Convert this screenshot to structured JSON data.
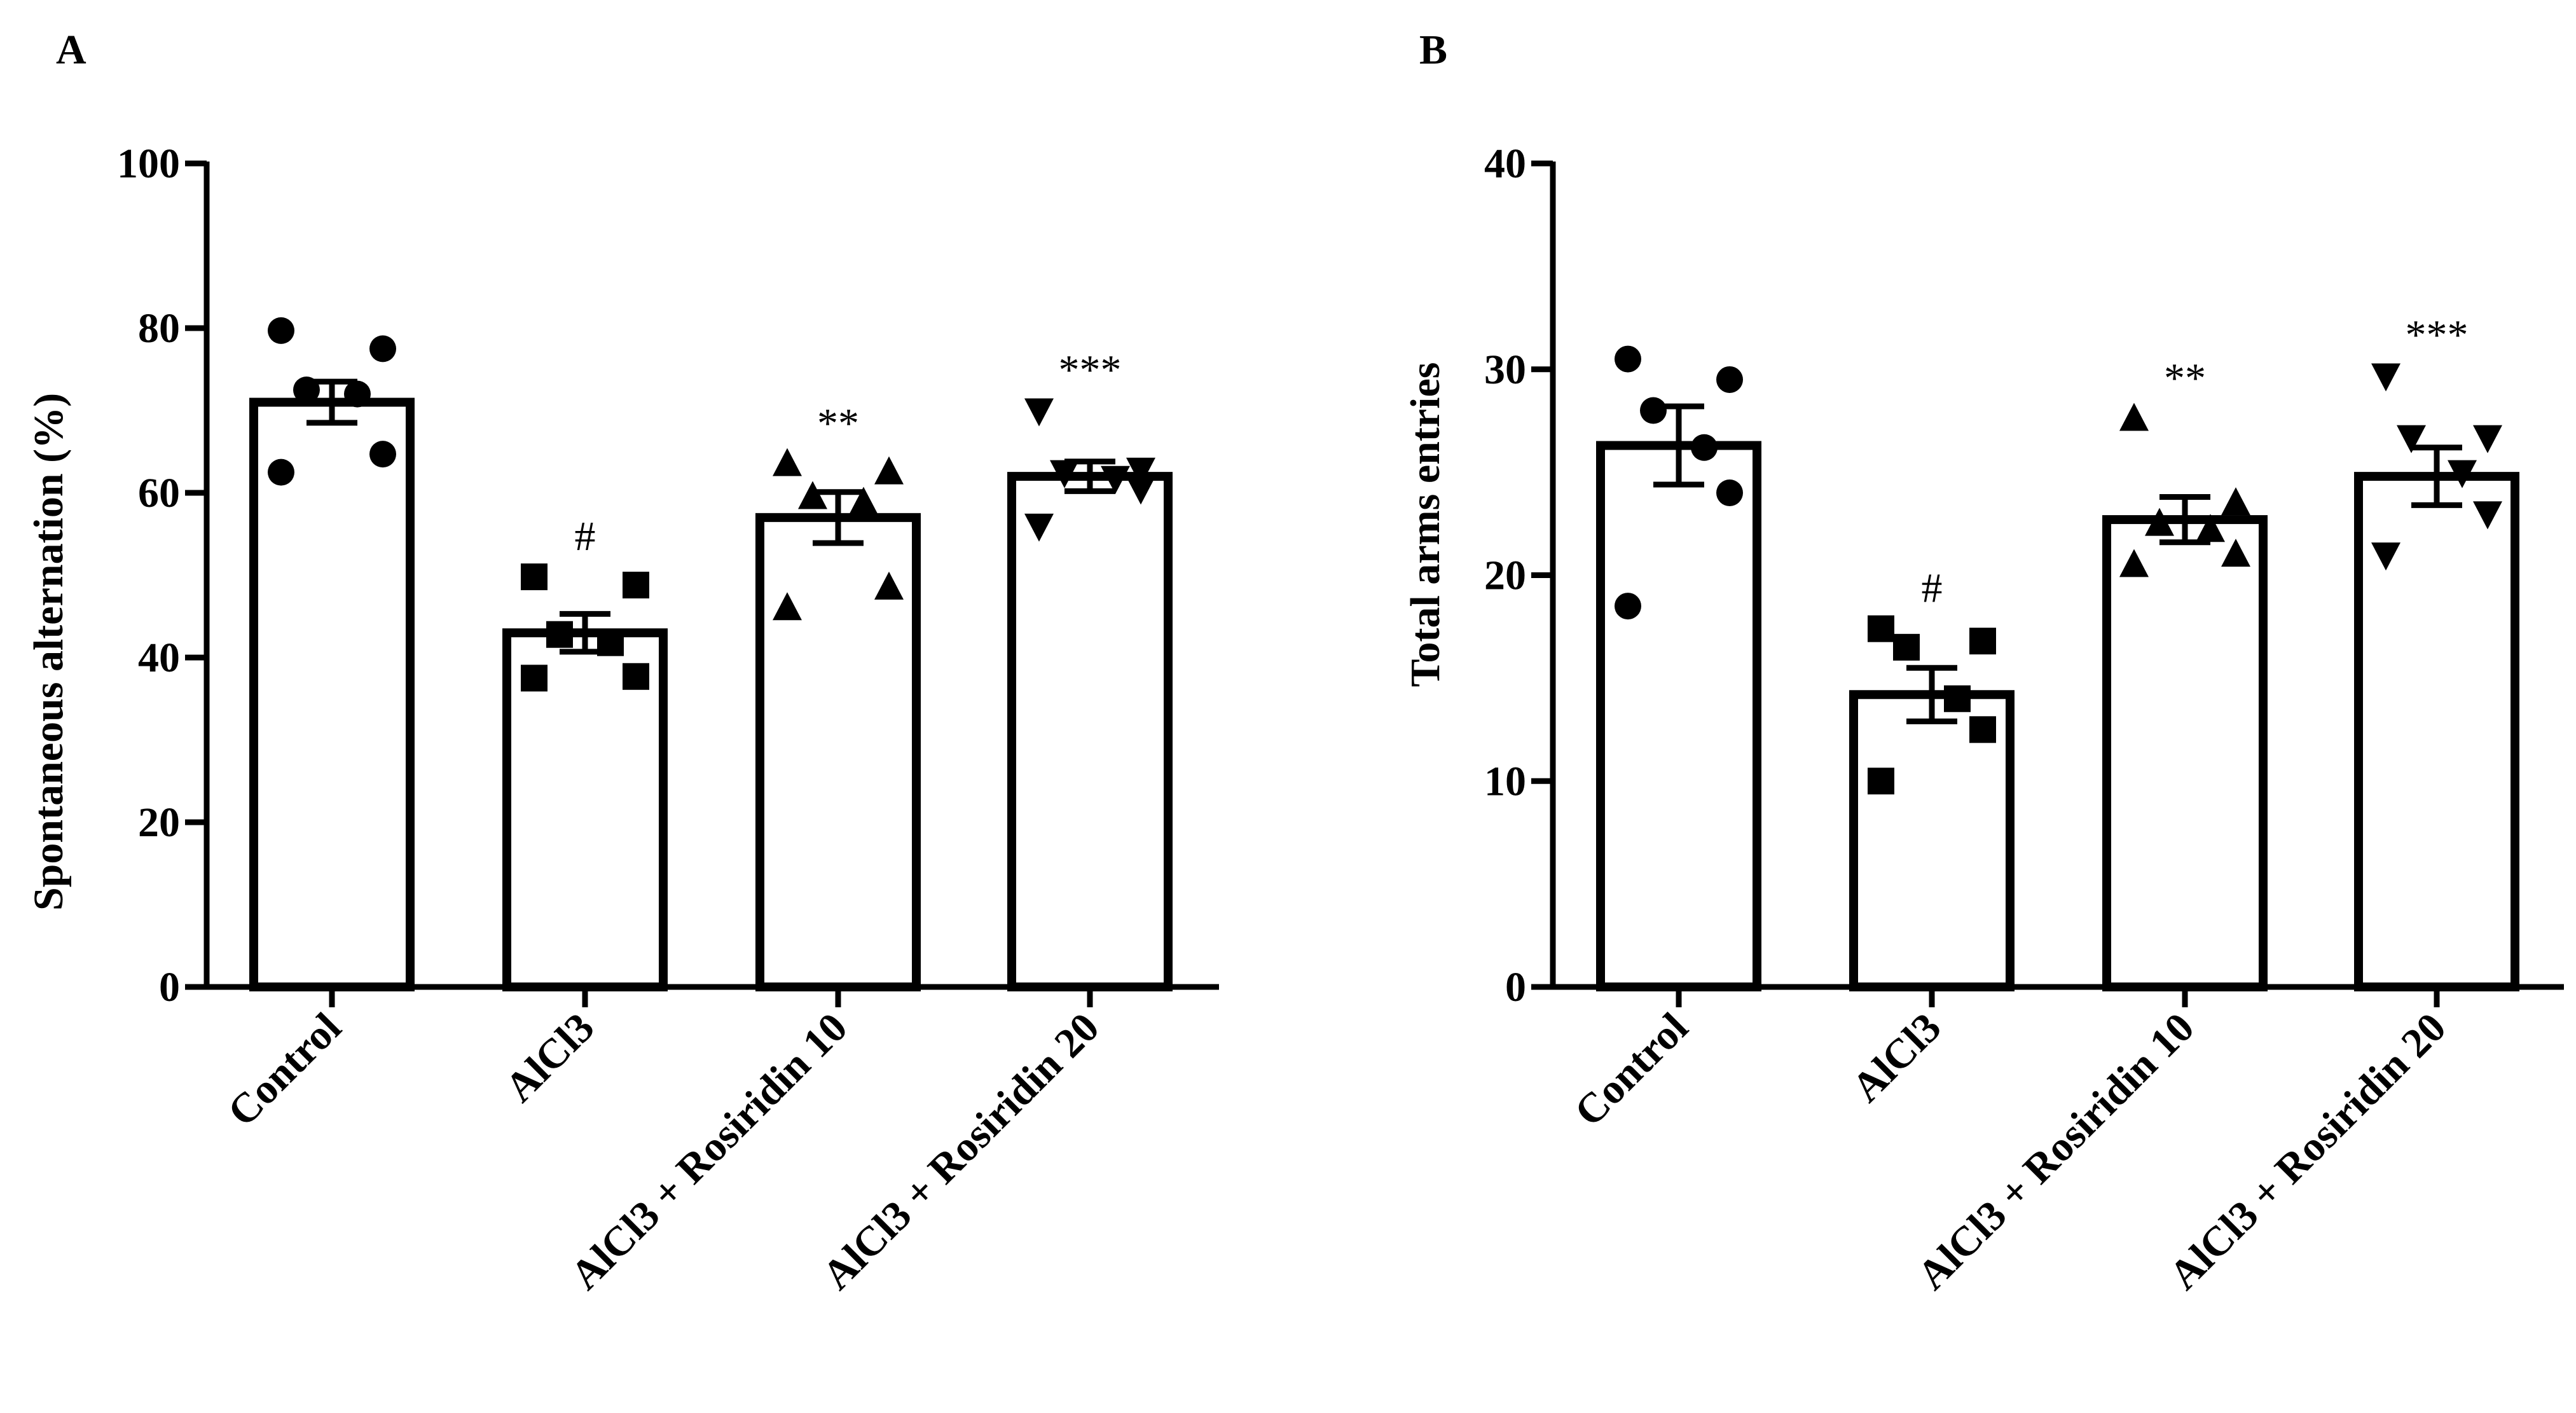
{
  "chart_data": [
    {
      "panel": "A",
      "type": "bar",
      "title": "",
      "xlabel": "",
      "ylabel": "Spontaneous alternation (%)",
      "ylim": [
        0,
        100
      ],
      "yticks": [
        "0",
        "20",
        "40",
        "60",
        "80",
        "100"
      ],
      "categories": [
        "Control",
        "AlCl3",
        "AlCl3 + Rosiridin 10",
        "AlCl3 + Rosiridin 20"
      ],
      "values": [
        71,
        43,
        57,
        62
      ],
      "sem": [
        2.5,
        2.3,
        3.1,
        1.8
      ],
      "markers": [
        "circle",
        "square",
        "triangle-up",
        "triangle-down"
      ],
      "points": [
        [
          79.7,
          77.5,
          72.5,
          72.0,
          64.7,
          62.5
        ],
        [
          49.8,
          48.8,
          42.8,
          41.8,
          37.7,
          37.5
        ],
        [
          63.5,
          62.5,
          59.5,
          58.8,
          48.5,
          46.0
        ],
        [
          70.0,
          62.8,
          62.5,
          61.8,
          60.5,
          56.0
        ]
      ],
      "significance": [
        "",
        "#",
        "**",
        "***"
      ],
      "grid": false
    },
    {
      "panel": "B",
      "type": "bar",
      "title": "",
      "xlabel": "",
      "ylabel": "Total arms entries",
      "ylim": [
        0,
        40
      ],
      "yticks": [
        "0",
        "10",
        "20",
        "30",
        "40"
      ],
      "categories": [
        "Control",
        "AlCl3",
        "AlCl3 + Rosiridin 10",
        "AlCl3 + Rosiridin 20"
      ],
      "values": [
        26.3,
        14.2,
        22.7,
        24.8
      ],
      "sem": [
        1.9,
        1.3,
        1.1,
        1.4
      ],
      "markers": [
        "circle",
        "square",
        "triangle-up",
        "triangle-down"
      ],
      "points": [
        [
          30.5,
          29.5,
          28.0,
          26.2,
          24.0,
          18.5
        ],
        [
          17.4,
          16.8,
          16.5,
          14.0,
          12.5,
          10.0
        ],
        [
          27.6,
          23.5,
          22.5,
          22.2,
          21.0,
          20.5
        ],
        [
          29.7,
          26.7,
          26.7,
          25.0,
          23.0,
          21.0
        ]
      ],
      "significance": [
        "",
        "#",
        "**",
        "***"
      ],
      "grid": false
    }
  ]
}
